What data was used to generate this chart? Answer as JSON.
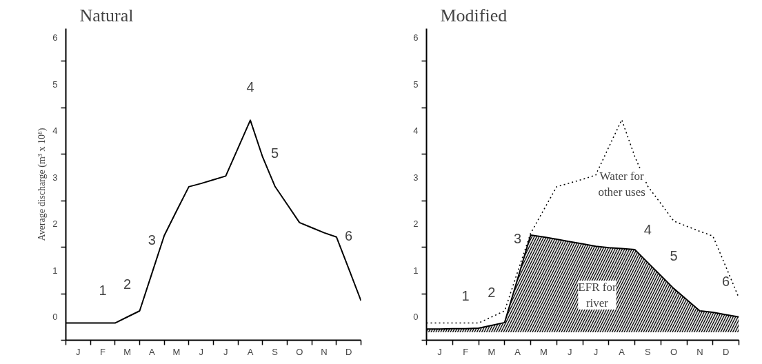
{
  "chart_data": [
    {
      "type": "line",
      "title": "Natural",
      "ylabel": "Average discharge (m³ x 10⁶)",
      "categories": [
        null,
        "J",
        null,
        "F",
        null,
        "M",
        null,
        "A",
        null,
        "M",
        null,
        "J",
        null,
        "J",
        null,
        "A",
        null,
        "S",
        null,
        "O",
        null,
        "N",
        null,
        "D",
        null
      ],
      "ylim": [
        -0.5,
        6.2
      ],
      "yticks": [
        {
          "value": -0.5,
          "label": null
        },
        0,
        {
          "value": 0.5,
          "label": null
        },
        1,
        {
          "value": 1.5,
          "label": null
        },
        2,
        {
          "value": 2.5,
          "label": null
        },
        3,
        {
          "value": 3.5,
          "label": null
        },
        4,
        {
          "value": 4.5,
          "label": null
        },
        5,
        {
          "value": 5.5,
          "label": null
        },
        6
      ],
      "series": [
        {
          "color": "#000000",
          "line_style": "solid",
          "values": [
            -0.13,
            -0.13,
            -0.13,
            -0.13,
            -0.13,
            0.0,
            0.13,
            0.94,
            1.75,
            2.28,
            2.8,
            2.87,
            2.95,
            3.03,
            3.63,
            4.23,
            3.44,
            2.81,
            2.42,
            2.03,
            1.92,
            1.81,
            1.72,
            1.04,
            0.35
          ]
        }
      ],
      "annotations": [
        {
          "text": "1",
          "x": "F",
          "y": -0.13
        },
        {
          "text": "2",
          "x": "M",
          "y": 0.0
        },
        {
          "text": "3",
          "x": "A",
          "y": 0.94
        },
        "4",
        {
          "text": "5",
          "x": "S",
          "y": 2.81
        },
        {
          "text": "6",
          "x": "D",
          "y": 1.04
        }
      ]
    },
    {
      "type": "line",
      "title": "Modified",
      "categories": [
        null,
        "J",
        null,
        "F",
        null,
        "M",
        null,
        "A",
        null,
        "M",
        null,
        "J",
        null,
        "J",
        null,
        "A",
        null,
        "S",
        null,
        "O",
        null,
        "N",
        null,
        "D",
        null
      ],
      "ylim": [
        -0.5,
        6.2
      ],
      "yticks": [
        {
          "value": -0.5,
          "label": null
        },
        0,
        {
          "value": 0.5,
          "label": null
        },
        1,
        {
          "value": 1.5,
          "label": null
        },
        2,
        {
          "value": 2.5,
          "label": null
        },
        3,
        {
          "value": 3.5,
          "label": null
        },
        4,
        {
          "value": 4.5,
          "label": null
        },
        5,
        {
          "value": 5.5,
          "label": null
        },
        6
      ],
      "series": [
        {
          "name": "EFR for river",
          "color": "#000000",
          "line_style": "solid",
          "values": [
            -0.26,
            -0.26,
            -0.25,
            -0.25,
            -0.24,
            -0.18,
            -0.12,
            0.82,
            1.76,
            1.72,
            1.67,
            1.62,
            1.57,
            1.52,
            1.49,
            1.47,
            1.45,
            1.17,
            0.89,
            0.61,
            0.37,
            0.13,
            0.1,
            0.05,
            0.0
          ],
          "lower": [
            -0.33,
            -0.33,
            -0.33,
            -0.33,
            -0.33,
            -0.33,
            -0.33,
            -0.33,
            -0.33,
            -0.33,
            -0.33,
            -0.33,
            -0.33,
            -0.33,
            -0.33,
            -0.33,
            -0.33,
            -0.33,
            -0.33,
            -0.33,
            -0.33,
            -0.33,
            -0.33,
            -0.33,
            -0.33
          ],
          "upper": [
            -0.26,
            -0.26,
            -0.25,
            -0.25,
            -0.24,
            -0.18,
            -0.12,
            0.82,
            1.76,
            1.72,
            1.67,
            1.62,
            1.57,
            1.52,
            1.49,
            1.47,
            1.45,
            1.17,
            0.89,
            0.61,
            0.37,
            0.13,
            0.1,
            0.05,
            0.0
          ]
        },
        {
          "name": "Water for other uses",
          "color": "#000000",
          "line_style": "dotted",
          "values": [
            -0.13,
            -0.13,
            -0.13,
            -0.13,
            -0.13,
            0.0,
            0.13,
            0.97,
            1.8,
            2.3,
            2.8,
            2.88,
            2.96,
            3.05,
            3.65,
            4.24,
            3.45,
            2.81,
            2.44,
            2.06,
            1.95,
            1.84,
            1.74,
            1.08,
            0.41
          ]
        }
      ],
      "annotations": [
        {
          "text": "1",
          "x": "F",
          "y": -0.25
        },
        {
          "text": "2",
          "x": "M",
          "y": -0.18
        },
        {
          "text": "3",
          "x": "A",
          "y": 0.97
        },
        {
          "text": "4",
          "x": "S",
          "y": 1.17
        },
        {
          "text": "5",
          "x": "O",
          "y": 0.61
        },
        {
          "text": "6",
          "x": "D",
          "y": 0.05
        }
      ]
    }
  ]
}
